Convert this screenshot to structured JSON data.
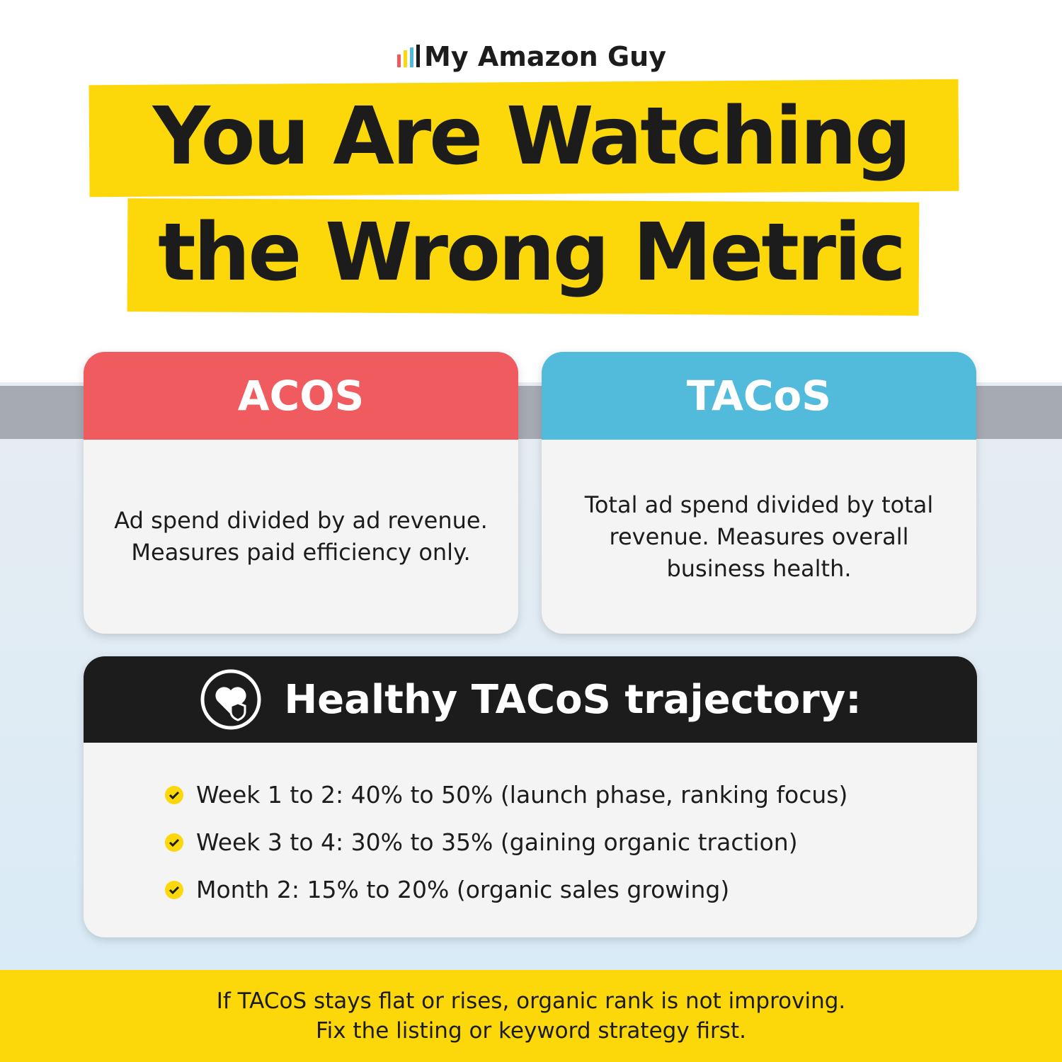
{
  "brand": "My Amazon Guy",
  "headline": {
    "line1": "You Are Watching",
    "line2": "the Wrong Metric"
  },
  "cards": [
    {
      "title": "ACOS",
      "lines": [
        "Ad spend divided by ad revenue.",
        "Measures paid efficiency only."
      ]
    },
    {
      "title": "TACoS",
      "lines": [
        "Total ad spend divided by total",
        "revenue. Measures overall",
        "business health."
      ]
    }
  ],
  "trajectory": {
    "title": "Healthy TACoS trajectory:",
    "items": [
      "Week 1 to 2: 40% to 50% (launch phase, ranking focus)",
      "Week 3 to 4: 30% to 35% (gaining organic traction)",
      "Month 2: 15% to 20% (organic sales growing)"
    ]
  },
  "footer": {
    "lines": [
      "If TACoS stays flat or rises, organic rank is not improving.",
      "Fix the listing or keyword strategy first."
    ]
  }
}
